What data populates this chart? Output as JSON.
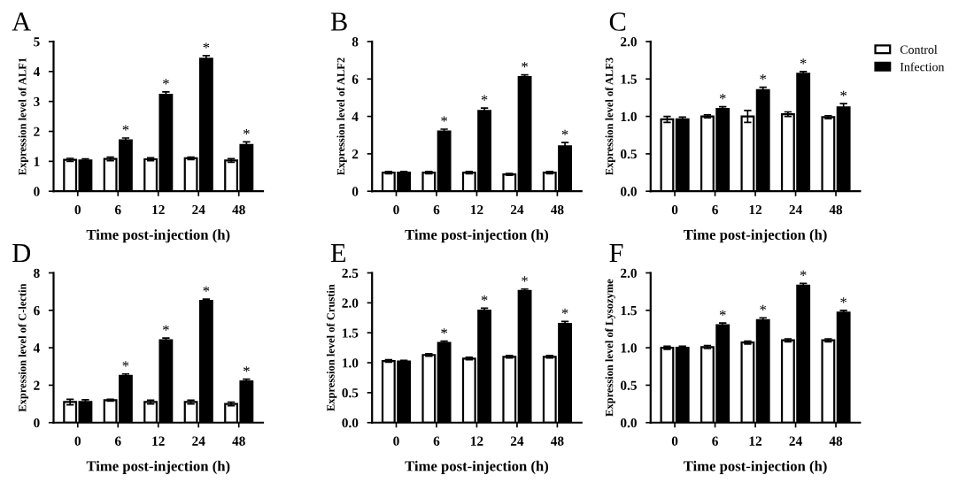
{
  "chart_data": [
    {
      "type": "bar",
      "title": "A",
      "xlabel": "Time post-injection (h)",
      "ylabel": "Expression level of ALF1",
      "categories": [
        "0",
        "6",
        "12",
        "24",
        "48"
      ],
      "ylim": [
        0,
        5
      ],
      "yticks": [
        0,
        1,
        2,
        3,
        4,
        5
      ],
      "grid": false,
      "legend": false,
      "series": [
        {
          "color": "#ffffff",
          "values": [
            1.05,
            1.08,
            1.07,
            1.1,
            1.03
          ],
          "errors": [
            0.05,
            0.06,
            0.05,
            0.04,
            0.06
          ]
        },
        {
          "color": "#000000",
          "values": [
            1.03,
            1.7,
            3.22,
            4.43,
            1.55
          ],
          "errors": [
            0.05,
            0.08,
            0.1,
            0.1,
            0.1
          ],
          "value_labels": [
            null,
            "*",
            "*",
            "*",
            "*"
          ]
        }
      ]
    },
    {
      "type": "bar",
      "title": "B",
      "xlabel": "Time post-injection (h)",
      "ylabel": "Expression level of ALF2",
      "categories": [
        "0",
        "6",
        "12",
        "24",
        "48"
      ],
      "ylim": [
        0,
        8
      ],
      "yticks": [
        0,
        2,
        4,
        6,
        8
      ],
      "grid": false,
      "legend": false,
      "series": [
        {
          "color": "#ffffff",
          "values": [
            1.0,
            1.0,
            1.0,
            0.9,
            1.0
          ],
          "errors": [
            0.06,
            0.06,
            0.06,
            0.05,
            0.06
          ]
        },
        {
          "color": "#000000",
          "values": [
            1.0,
            3.2,
            4.3,
            6.1,
            2.4
          ],
          "errors": [
            0.06,
            0.12,
            0.15,
            0.12,
            0.2
          ],
          "value_labels": [
            null,
            "*",
            "*",
            "*",
            "*"
          ]
        }
      ]
    },
    {
      "type": "bar",
      "title": "C",
      "xlabel": "Time post-injection (h)",
      "ylabel": "Expression level of ALF3",
      "categories": [
        "0",
        "6",
        "12",
        "24",
        "48"
      ],
      "ylim": [
        0,
        2
      ],
      "yticks": [
        {
          "value": 0,
          "label": "0.0"
        },
        {
          "value": 0.5,
          "label": "0.5"
        },
        {
          "value": 1,
          "label": "1.0"
        },
        {
          "value": 1.5,
          "label": "1.5"
        },
        {
          "value": 2,
          "label": "2.0"
        }
      ],
      "grid": false,
      "legend": "right",
      "series": [
        {
          "name": "Control",
          "color": "#ffffff",
          "values": [
            0.96,
            1.0,
            1.0,
            1.03,
            0.99
          ],
          "errors": [
            0.04,
            0.02,
            0.08,
            0.03,
            0.02
          ]
        },
        {
          "name": "Infection",
          "color": "#000000",
          "values": [
            0.96,
            1.1,
            1.35,
            1.57,
            1.12
          ],
          "errors": [
            0.03,
            0.03,
            0.04,
            0.03,
            0.05
          ],
          "value_labels": [
            null,
            "*",
            "*",
            "*",
            "*"
          ]
        }
      ]
    },
    {
      "type": "bar",
      "title": "D",
      "xlabel": "Time post-injection (h)",
      "ylabel": "Expression level of C-lectin",
      "categories": [
        "0",
        "6",
        "12",
        "24",
        "48"
      ],
      "ylim": [
        0,
        8
      ],
      "yticks": [
        0,
        2,
        4,
        6,
        8
      ],
      "grid": false,
      "legend": false,
      "series": [
        {
          "color": "#ffffff",
          "values": [
            1.1,
            1.2,
            1.1,
            1.1,
            1.0
          ],
          "errors": [
            0.15,
            0.05,
            0.1,
            0.1,
            0.1
          ]
        },
        {
          "color": "#000000",
          "values": [
            1.1,
            2.5,
            4.4,
            6.5,
            2.2
          ],
          "errors": [
            0.12,
            0.1,
            0.12,
            0.1,
            0.12
          ],
          "value_labels": [
            null,
            "*",
            "*",
            "*",
            "*"
          ]
        }
      ]
    },
    {
      "type": "bar",
      "title": "E",
      "xlabel": "Time post-injection (h)",
      "ylabel": "Expression level of Crustin",
      "categories": [
        "0",
        "6",
        "12",
        "24",
        "48"
      ],
      "ylim": [
        0,
        2.5
      ],
      "yticks": [
        {
          "value": 0,
          "label": "0.0"
        },
        {
          "value": 0.5,
          "label": "0.5"
        },
        {
          "value": 1,
          "label": "1.0"
        },
        {
          "value": 1.5,
          "label": "1.5"
        },
        {
          "value": 2,
          "label": "2.0"
        },
        {
          "value": 2.5,
          "label": "2.5"
        }
      ],
      "grid": false,
      "legend": false,
      "series": [
        {
          "color": "#ffffff",
          "values": [
            1.03,
            1.13,
            1.07,
            1.1,
            1.1
          ],
          "errors": [
            0.02,
            0.02,
            0.02,
            0.02,
            0.02
          ]
        },
        {
          "color": "#000000",
          "values": [
            1.02,
            1.33,
            1.87,
            2.2,
            1.65
          ],
          "errors": [
            0.02,
            0.03,
            0.04,
            0.03,
            0.04
          ],
          "value_labels": [
            null,
            "*",
            "*",
            "*",
            "*"
          ]
        }
      ]
    },
    {
      "type": "bar",
      "title": "F",
      "xlabel": "Time post-injection (h)",
      "ylabel": "Expression level of Lysozyme",
      "categories": [
        "0",
        "6",
        "12",
        "24",
        "48"
      ],
      "ylim": [
        0,
        2
      ],
      "yticks": [
        {
          "value": 0,
          "label": "0.0"
        },
        {
          "value": 0.5,
          "label": "0.5"
        },
        {
          "value": 1,
          "label": "1.0"
        },
        {
          "value": 1.5,
          "label": "1.5"
        },
        {
          "value": 2,
          "label": "2.0"
        }
      ],
      "grid": false,
      "legend": false,
      "series": [
        {
          "color": "#ffffff",
          "values": [
            1.0,
            1.01,
            1.07,
            1.1,
            1.1
          ],
          "errors": [
            0.02,
            0.02,
            0.02,
            0.02,
            0.02
          ]
        },
        {
          "color": "#000000",
          "values": [
            1.0,
            1.3,
            1.37,
            1.83,
            1.47
          ],
          "errors": [
            0.02,
            0.03,
            0.03,
            0.03,
            0.03
          ],
          "value_labels": [
            null,
            "*",
            "*",
            "*",
            "*"
          ]
        }
      ]
    }
  ]
}
